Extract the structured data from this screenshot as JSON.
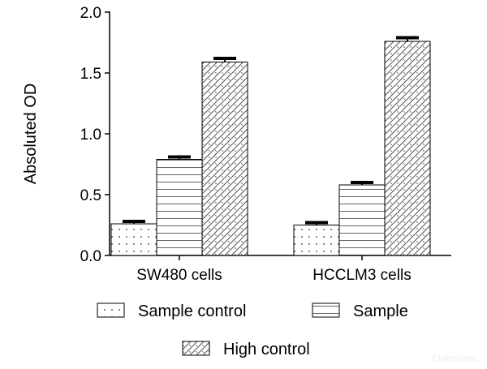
{
  "chart_data": {
    "type": "bar",
    "title": "",
    "xlabel": "",
    "ylabel": "Absoluted OD",
    "ylim": [
      0,
      2.0
    ],
    "yticks": [
      "0.0",
      "0.5",
      "1.0",
      "1.5",
      "2.0"
    ],
    "ytick_values": [
      0,
      0.5,
      1.0,
      1.5,
      2.0
    ],
    "categories": [
      "SW480 cells",
      "HCCLM3 cells"
    ],
    "grid": false,
    "legend_placement": "bottom",
    "series": [
      {
        "name": "Sample control",
        "pattern": "dots",
        "values": [
          0.26,
          0.25
        ],
        "errors": [
          0.02,
          0.02
        ]
      },
      {
        "name": "Sample",
        "pattern": "horizontal-lines",
        "values": [
          0.79,
          0.58
        ],
        "errors": [
          0.02,
          0.02
        ]
      },
      {
        "name": "High control",
        "pattern": "diagonal-hatch",
        "values": [
          1.59,
          1.76
        ],
        "errors": [
          0.03,
          0.03
        ]
      }
    ]
  },
  "watermark": "Elabscienc",
  "colors": {
    "bar_stroke": "#000000",
    "bar_fill": "#ffffff",
    "pattern": "#555555",
    "watermark": "#eeeeee"
  }
}
